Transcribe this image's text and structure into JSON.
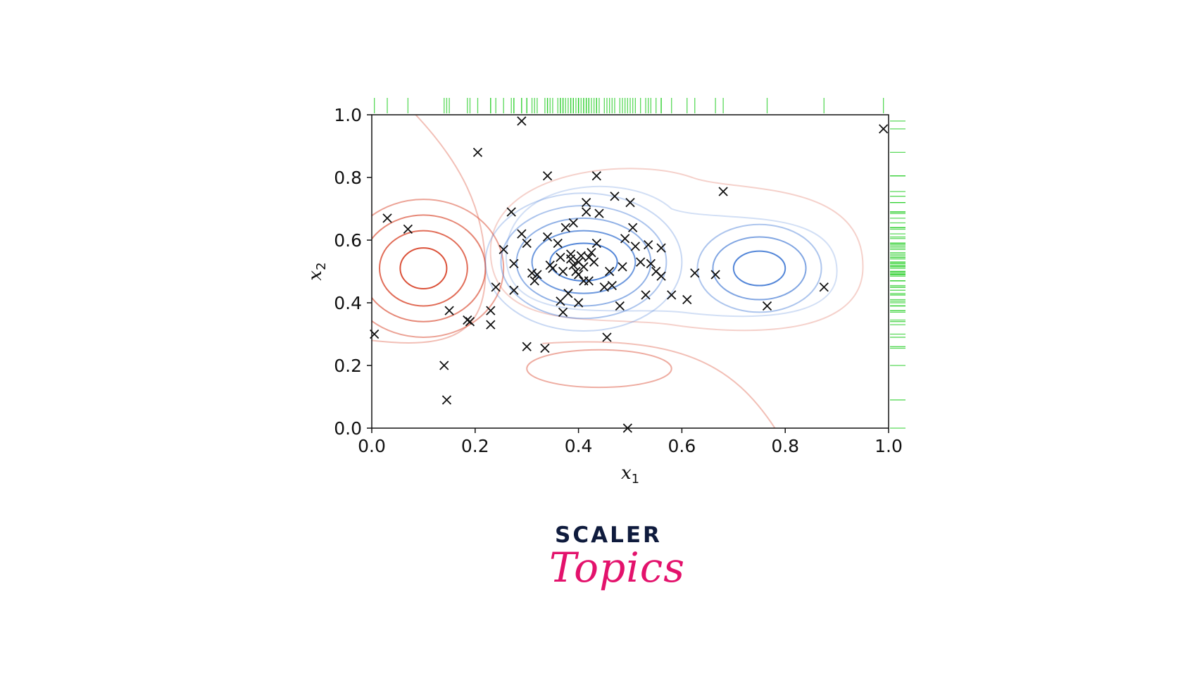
{
  "chart_data": {
    "type": "scatter",
    "xlabel": "x",
    "xlabel_sub": "1",
    "ylabel": "x",
    "ylabel_sub": "2",
    "xlim": [
      0.0,
      1.0
    ],
    "ylim": [
      0.0,
      1.0
    ],
    "x_ticks": [
      "0.0",
      "0.2",
      "0.4",
      "0.6",
      "0.8",
      "1.0"
    ],
    "y_ticks": [
      "0.0",
      "0.2",
      "0.4",
      "0.6",
      "0.8",
      "1.0"
    ],
    "grid": false,
    "marker": "x",
    "marginal_rugs": [
      "top",
      "right"
    ],
    "colors": {
      "points": "#111111",
      "rug": "#22cc22",
      "contour_positive": "#d9482e",
      "contour_negative": "#4a7fd6"
    },
    "contours": {
      "description_free": true,
      "red": [
        {
          "cx": 0.1,
          "cy": 0.51,
          "rx": 0.045,
          "ry": 0.065
        },
        {
          "cx": 0.1,
          "cy": 0.51,
          "rx": 0.085,
          "ry": 0.12
        },
        {
          "cx": 0.1,
          "cy": 0.51,
          "rx": 0.12,
          "ry": 0.17
        },
        {
          "cx": 0.1,
          "cy": 0.51,
          "rx": 0.155,
          "ry": 0.22
        },
        {
          "cx": 0.44,
          "cy": 0.19,
          "rx": 0.14,
          "ry": 0.06
        }
      ],
      "blue": [
        {
          "cx": 0.41,
          "cy": 0.53,
          "rx": 0.065,
          "ry": 0.06
        },
        {
          "cx": 0.41,
          "cy": 0.53,
          "rx": 0.1,
          "ry": 0.1
        },
        {
          "cx": 0.41,
          "cy": 0.53,
          "rx": 0.13,
          "ry": 0.14
        },
        {
          "cx": 0.41,
          "cy": 0.53,
          "rx": 0.16,
          "ry": 0.18
        },
        {
          "cx": 0.41,
          "cy": 0.53,
          "rx": 0.19,
          "ry": 0.22
        },
        {
          "cx": 0.75,
          "cy": 0.51,
          "rx": 0.05,
          "ry": 0.055
        },
        {
          "cx": 0.75,
          "cy": 0.51,
          "rx": 0.09,
          "ry": 0.1
        },
        {
          "cx": 0.75,
          "cy": 0.51,
          "rx": 0.12,
          "ry": 0.14
        }
      ]
    },
    "points": [
      {
        "x": 0.005,
        "y": 0.3
      },
      {
        "x": 0.03,
        "y": 0.67
      },
      {
        "x": 0.07,
        "y": 0.635
      },
      {
        "x": 0.14,
        "y": 0.2
      },
      {
        "x": 0.145,
        "y": 0.09
      },
      {
        "x": 0.15,
        "y": 0.375
      },
      {
        "x": 0.185,
        "y": 0.345
      },
      {
        "x": 0.19,
        "y": 0.34
      },
      {
        "x": 0.205,
        "y": 0.88
      },
      {
        "x": 0.23,
        "y": 0.375
      },
      {
        "x": 0.23,
        "y": 0.33
      },
      {
        "x": 0.24,
        "y": 0.45
      },
      {
        "x": 0.255,
        "y": 0.57
      },
      {
        "x": 0.27,
        "y": 0.69
      },
      {
        "x": 0.275,
        "y": 0.525
      },
      {
        "x": 0.275,
        "y": 0.44
      },
      {
        "x": 0.29,
        "y": 0.62
      },
      {
        "x": 0.29,
        "y": 0.98
      },
      {
        "x": 0.3,
        "y": 0.26
      },
      {
        "x": 0.3,
        "y": 0.59
      },
      {
        "x": 0.31,
        "y": 0.495
      },
      {
        "x": 0.315,
        "y": 0.47
      },
      {
        "x": 0.32,
        "y": 0.49
      },
      {
        "x": 0.335,
        "y": 0.255
      },
      {
        "x": 0.34,
        "y": 0.805
      },
      {
        "x": 0.34,
        "y": 0.61
      },
      {
        "x": 0.345,
        "y": 0.52
      },
      {
        "x": 0.35,
        "y": 0.51
      },
      {
        "x": 0.36,
        "y": 0.59
      },
      {
        "x": 0.365,
        "y": 0.545
      },
      {
        "x": 0.365,
        "y": 0.405
      },
      {
        "x": 0.37,
        "y": 0.37
      },
      {
        "x": 0.37,
        "y": 0.5
      },
      {
        "x": 0.375,
        "y": 0.64
      },
      {
        "x": 0.38,
        "y": 0.43
      },
      {
        "x": 0.385,
        "y": 0.555
      },
      {
        "x": 0.385,
        "y": 0.54
      },
      {
        "x": 0.39,
        "y": 0.655
      },
      {
        "x": 0.39,
        "y": 0.52
      },
      {
        "x": 0.395,
        "y": 0.5
      },
      {
        "x": 0.4,
        "y": 0.53
      },
      {
        "x": 0.4,
        "y": 0.49
      },
      {
        "x": 0.4,
        "y": 0.4
      },
      {
        "x": 0.405,
        "y": 0.55
      },
      {
        "x": 0.41,
        "y": 0.515
      },
      {
        "x": 0.41,
        "y": 0.47
      },
      {
        "x": 0.415,
        "y": 0.72
      },
      {
        "x": 0.415,
        "y": 0.69
      },
      {
        "x": 0.42,
        "y": 0.545
      },
      {
        "x": 0.42,
        "y": 0.47
      },
      {
        "x": 0.425,
        "y": 0.56
      },
      {
        "x": 0.43,
        "y": 0.53
      },
      {
        "x": 0.435,
        "y": 0.805
      },
      {
        "x": 0.435,
        "y": 0.59
      },
      {
        "x": 0.44,
        "y": 0.685
      },
      {
        "x": 0.45,
        "y": 0.45
      },
      {
        "x": 0.455,
        "y": 0.29
      },
      {
        "x": 0.46,
        "y": 0.5
      },
      {
        "x": 0.465,
        "y": 0.455
      },
      {
        "x": 0.47,
        "y": 0.74
      },
      {
        "x": 0.48,
        "y": 0.39
      },
      {
        "x": 0.485,
        "y": 0.515
      },
      {
        "x": 0.49,
        "y": 0.605
      },
      {
        "x": 0.495,
        "y": 0.0
      },
      {
        "x": 0.5,
        "y": 0.72
      },
      {
        "x": 0.505,
        "y": 0.64
      },
      {
        "x": 0.51,
        "y": 0.58
      },
      {
        "x": 0.52,
        "y": 0.53
      },
      {
        "x": 0.53,
        "y": 0.425
      },
      {
        "x": 0.535,
        "y": 0.585
      },
      {
        "x": 0.54,
        "y": 0.525
      },
      {
        "x": 0.55,
        "y": 0.5
      },
      {
        "x": 0.56,
        "y": 0.575
      },
      {
        "x": 0.56,
        "y": 0.485
      },
      {
        "x": 0.58,
        "y": 0.425
      },
      {
        "x": 0.61,
        "y": 0.41
      },
      {
        "x": 0.625,
        "y": 0.495
      },
      {
        "x": 0.665,
        "y": 0.49
      },
      {
        "x": 0.68,
        "y": 0.755
      },
      {
        "x": 0.765,
        "y": 0.39
      },
      {
        "x": 0.875,
        "y": 0.45
      },
      {
        "x": 0.99,
        "y": 0.955
      }
    ]
  },
  "brand": {
    "top": "SCALER",
    "bottom": "Topics"
  }
}
